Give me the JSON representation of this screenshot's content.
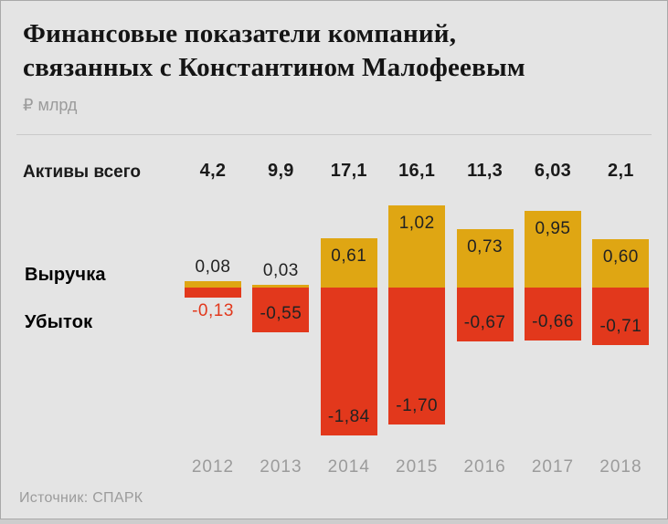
{
  "header": {
    "title_line1": "Финансовые показатели компаний,",
    "title_line2": "связанных с Константином Малофеевым",
    "unit": "₽ млрд"
  },
  "assets_row": {
    "label": "Активы всего",
    "values": [
      "4,2",
      "9,9",
      "17,1",
      "16,1",
      "11,3",
      "6,03",
      "2,1"
    ]
  },
  "legend": {
    "revenue": "Выручка",
    "loss": "Убыток"
  },
  "footer": {
    "source": "Источник: СПАРК"
  },
  "colors": {
    "revenue_bar": "#DFA613",
    "loss_bar": "#E2381C",
    "negative_outside_label": "#E2381C",
    "dark_text": "#222222",
    "gray_text": "#9B9B9B",
    "card_background": "#E4E4E4"
  },
  "chart_data": {
    "type": "bar",
    "title": "Финансовые показатели компаний, связанных с Константином Малофеевым",
    "ylabel": "₽ млрд",
    "source": "Источник: СПАРК",
    "categories": [
      "2012",
      "2013",
      "2014",
      "2015",
      "2016",
      "2017",
      "2018"
    ],
    "series": [
      {
        "name": "Выручка",
        "color": "#DFA613",
        "values": [
          0.08,
          0.03,
          0.61,
          1.02,
          0.73,
          0.95,
          0.6
        ],
        "labels": [
          "0,08",
          "0,03",
          "0,61",
          "1,02",
          "0,73",
          "0,95",
          "0,60"
        ]
      },
      {
        "name": "Убыток",
        "color": "#E2381C",
        "values": [
          -0.13,
          -0.55,
          -1.84,
          -1.7,
          -0.67,
          -0.66,
          -0.71
        ],
        "labels": [
          "-0,13",
          "-0,55",
          "-1,84",
          "-1,70",
          "-0,67",
          "-0,66",
          "-0,71"
        ]
      },
      {
        "name": "Активы всего",
        "values": [
          4.2,
          9.9,
          17.1,
          16.1,
          11.3,
          6.03,
          2.1
        ],
        "labels": [
          "4,2",
          "9,9",
          "17,1",
          "16,1",
          "11,3",
          "6,03",
          "2,1"
        ]
      }
    ],
    "ylim": [
      -2.0,
      1.2
    ],
    "grid": false,
    "legend_position": "left",
    "baseline": 0
  }
}
